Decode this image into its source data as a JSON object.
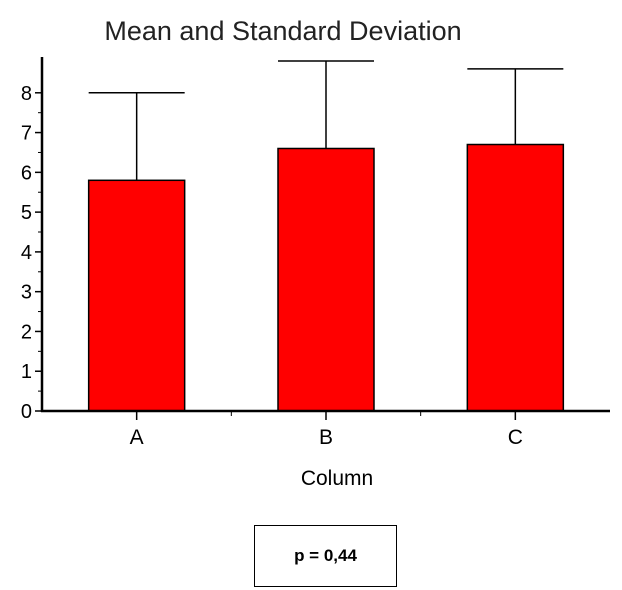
{
  "chart_data": {
    "type": "bar",
    "title": "Mean and Standard Deviation",
    "xlabel": "Column",
    "ylabel": "",
    "categories": [
      "A",
      "B",
      "C"
    ],
    "values": [
      5.8,
      6.6,
      6.7
    ],
    "std_dev": [
      2.2,
      2.2,
      1.9
    ],
    "ylim": [
      0,
      8.9
    ],
    "yticks": [
      0,
      1,
      2,
      3,
      4,
      5,
      6,
      7,
      8
    ],
    "grid": false,
    "legend": "none",
    "bar_color": "#ff0000"
  },
  "annotation": {
    "p_value": "p = 0,44"
  }
}
